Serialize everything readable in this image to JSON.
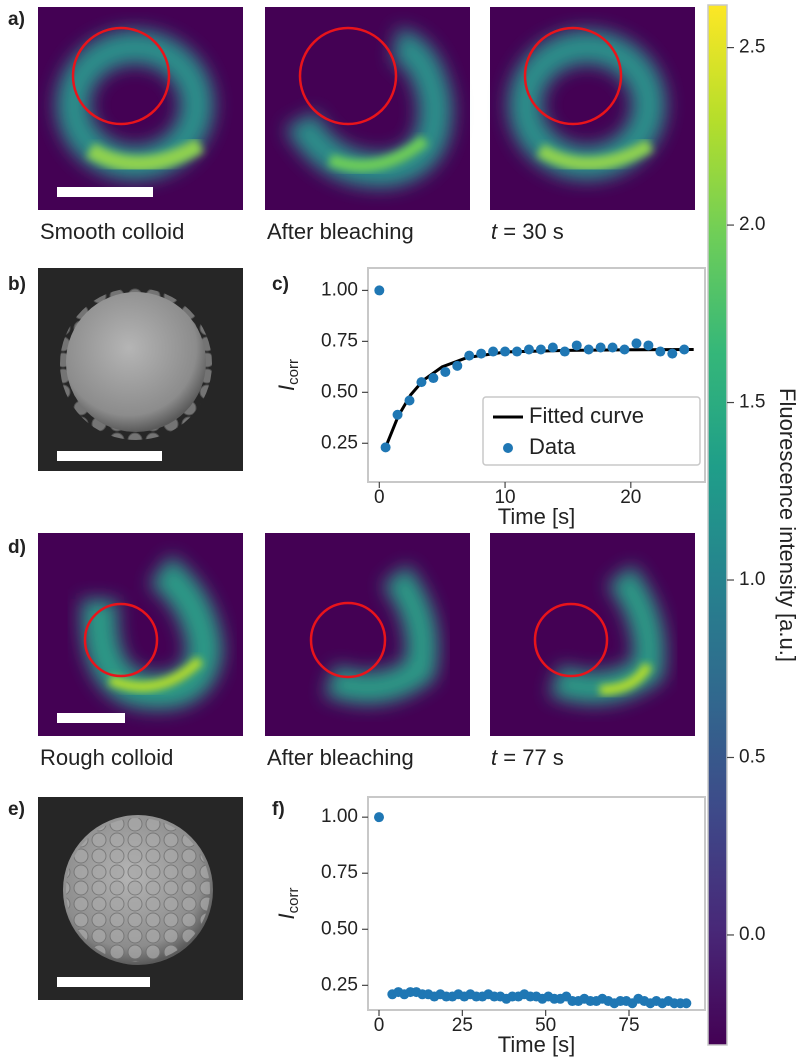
{
  "figure": {
    "panel_labels": [
      "a)",
      "b)",
      "c)",
      "d)",
      "e)",
      "f)"
    ],
    "captions": [
      "Smooth colloid",
      "After bleaching",
      {
        "var": "t",
        "rest": "= 30 s"
      },
      "Rough colloid",
      "After bleaching",
      {
        "var": "t",
        "rest": "= 77 s"
      }
    ]
  },
  "chart_data": [
    {
      "type": "scatter",
      "xlabel": "Time [s]",
      "ylabel": {
        "main": "I",
        "sub": "corr"
      },
      "xlim": [
        -0.9,
        25.9
      ],
      "ylim": [
        0.06,
        1.11
      ],
      "xticks": [
        0,
        10,
        20
      ],
      "yticks": [
        {
          "value": 0.25,
          "label": "0.25"
        },
        {
          "value": 0.5,
          "label": "0.50"
        },
        {
          "value": 0.75,
          "label": "0.75"
        },
        {
          "value": 1,
          "label": "1.00"
        }
      ],
      "legend": "lower right",
      "series": [
        {
          "name": "Fitted curve",
          "type": "line",
          "color": "#000000",
          "x": [
            0.5,
            1.5,
            2.5,
            3.5,
            5,
            7,
            10,
            15,
            20,
            25
          ],
          "values": [
            0.23,
            0.383,
            0.488,
            0.559,
            0.625,
            0.671,
            0.698,
            0.706,
            0.709,
            0.71
          ]
        },
        {
          "name": "Data",
          "type": "scatter",
          "color": "#1f77b4",
          "x": [
            0,
            0.5,
            1.45,
            2.4,
            3.35,
            4.3,
            5.25,
            6.2,
            7.15,
            8.1,
            9.05,
            10,
            10.95,
            11.9,
            12.85,
            13.8,
            14.75,
            15.7,
            16.65,
            17.6,
            18.55,
            19.5,
            20.45,
            21.4,
            22.35,
            23.3,
            24.25
          ],
          "values": [
            1.0,
            0.23,
            0.39,
            0.46,
            0.55,
            0.57,
            0.6,
            0.63,
            0.68,
            0.69,
            0.7,
            0.7,
            0.7,
            0.71,
            0.71,
            0.72,
            0.7,
            0.73,
            0.71,
            0.72,
            0.72,
            0.71,
            0.74,
            0.73,
            0.7,
            0.69,
            0.71
          ]
        }
      ]
    },
    {
      "type": "scatter",
      "xlabel": "Time [s]",
      "ylabel": {
        "main": "I",
        "sub": "corr"
      },
      "xlim": [
        -3.3,
        97.8
      ],
      "ylim": [
        0.14,
        1.09
      ],
      "xticks": [
        0,
        25,
        50,
        75
      ],
      "yticks": [
        {
          "value": 0.25,
          "label": "0.25"
        },
        {
          "value": 0.5,
          "label": "0.50"
        },
        {
          "value": 0.75,
          "label": "0.75"
        },
        {
          "value": 1,
          "label": "1.00"
        }
      ],
      "series": [
        {
          "name": "Data",
          "type": "scatter",
          "color": "#1f77b4",
          "x": [
            0,
            4,
            5.8,
            7.6,
            9.4,
            11.2,
            13,
            14.8,
            16.6,
            18.4,
            20.2,
            22,
            23.8,
            25.6,
            27.4,
            29.2,
            31,
            32.8,
            34.6,
            36.4,
            38.2,
            40,
            41.8,
            43.6,
            45.4,
            47.2,
            49,
            50.8,
            52.6,
            54.4,
            56.2,
            58,
            59.8,
            61.6,
            63.4,
            65.2,
            67,
            68.8,
            70.6,
            72.4,
            74.2,
            76,
            77.8,
            79.6,
            81.4,
            83.2,
            85,
            86.8,
            88.6,
            90.4,
            92.2
          ],
          "values": [
            1.0,
            0.21,
            0.22,
            0.21,
            0.22,
            0.22,
            0.21,
            0.21,
            0.2,
            0.21,
            0.2,
            0.2,
            0.21,
            0.2,
            0.21,
            0.2,
            0.2,
            0.21,
            0.2,
            0.2,
            0.19,
            0.2,
            0.2,
            0.21,
            0.2,
            0.2,
            0.19,
            0.2,
            0.19,
            0.19,
            0.2,
            0.18,
            0.18,
            0.19,
            0.18,
            0.18,
            0.19,
            0.18,
            0.17,
            0.18,
            0.18,
            0.17,
            0.19,
            0.18,
            0.17,
            0.18,
            0.17,
            0.18,
            0.17,
            0.17,
            0.17
          ]
        }
      ]
    },
    {
      "type": "colorbar",
      "label": "Fluorescence intensity [a.u.]",
      "ylim": [
        -0.31,
        2.62
      ],
      "yticks": [
        {
          "value": 0,
          "label": "0.0"
        },
        0.5,
        {
          "value": 1,
          "label": "1.0"
        },
        1.5,
        {
          "value": 2,
          "label": "2.0"
        },
        2.5
      ],
      "colors": [
        "#440154",
        "#482878",
        "#3e4989",
        "#31688e",
        "#26828e",
        "#1f9e89",
        "#35b779",
        "#6ece58",
        "#b5de2b",
        "#fde725"
      ]
    }
  ]
}
